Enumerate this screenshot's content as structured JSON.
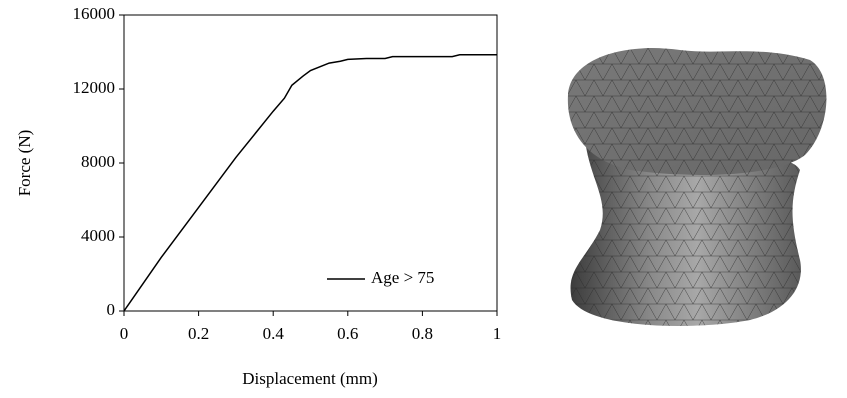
{
  "chart_data": {
    "type": "line",
    "x_label": "Displacement (mm)",
    "y_label": "Force (N)",
    "x": [
      0,
      0.1,
      0.2,
      0.3,
      0.4,
      0.43,
      0.45,
      0.48,
      0.5,
      0.55,
      0.58,
      0.6,
      0.65,
      0.7,
      0.72,
      0.8,
      0.88,
      0.9,
      1
    ],
    "series": [
      {
        "name": "Age > 75",
        "color": "#000000",
        "values": [
          0,
          2900,
          5600,
          8300,
          10800,
          11500,
          12200,
          12700,
          13000,
          13400,
          13500,
          13600,
          13650,
          13650,
          13750,
          13750,
          13750,
          13850,
          13850
        ]
      }
    ],
    "xlim": [
      0,
      1
    ],
    "xticks": [
      0,
      0.2,
      0.4,
      0.6,
      0.8,
      1
    ],
    "ylim": [
      0,
      16000
    ],
    "yticks": [
      0,
      4000,
      8000,
      12000,
      16000
    ],
    "grid": false,
    "legend": "lower right"
  }
}
